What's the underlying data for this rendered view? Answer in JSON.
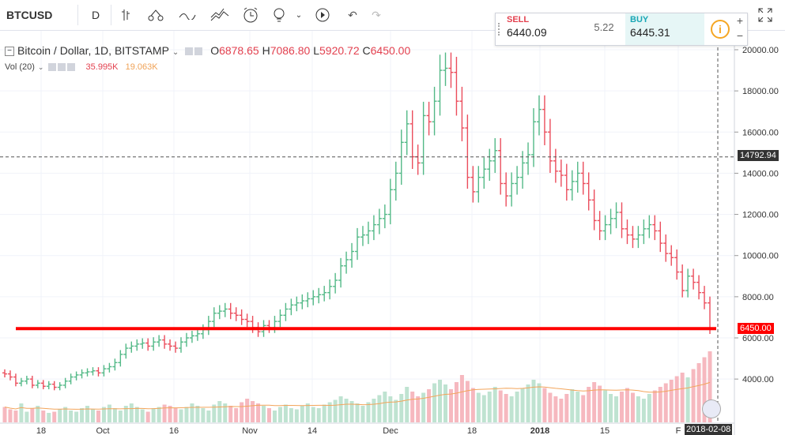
{
  "toolbar": {
    "symbol": "BTCUSD",
    "interval": "D",
    "icons": [
      "bar-style-icon",
      "indicators-icon",
      "line-tool-icon",
      "pattern-icon",
      "alert-icon",
      "idea-icon",
      "replay-icon",
      "undo-icon",
      "redo-icon",
      "fullscreen-icon"
    ]
  },
  "legend": {
    "title": "Bitcoin / Dollar, 1D, BITSTAMP",
    "o_label": "O",
    "o": "6878.65",
    "h_label": "H",
    "h": "7086.80",
    "l_label": "L",
    "l": "5920.72",
    "c_label": "C",
    "c": "6450.00",
    "vol_label": "Vol (20)",
    "vol1": "35.995K",
    "vol2": "19.063K"
  },
  "trade": {
    "sell_label": "SELL",
    "sell_price": "6440.09",
    "spread": "5.22",
    "buy_label": "BUY",
    "buy_price": "6445.31",
    "info": "i",
    "plus": "+",
    "minus": "−"
  },
  "colors": {
    "up": "#53b987",
    "down": "#eb4d5c",
    "hline": "#ff0000",
    "vol_up": "#bfe3d1",
    "vol_down": "#f6b8bf",
    "ma": "#f3a55b"
  },
  "chart_data": {
    "type": "ohlc",
    "y_ticks": [
      "20000.00",
      "18000.00",
      "16000.00",
      "14000.00",
      "12000.00",
      "10000.00",
      "8000.00",
      "6000.00",
      "4000.00"
    ],
    "x_ticks": [
      "18",
      "Oct",
      "16",
      "Nov",
      "14",
      "Dec",
      "18",
      "2018",
      "15",
      "F"
    ],
    "crosshair_price": "14792.94",
    "current_price": "6450.00",
    "date_label": "2018-02-08",
    "ylim": [
      2500,
      20500
    ],
    "hline": 6450,
    "closes": [
      4250,
      4100,
      3800,
      3900,
      4000,
      3700,
      3800,
      3650,
      3750,
      3600,
      3700,
      3900,
      4100,
      4200,
      4300,
      4350,
      4400,
      4300,
      4500,
      4600,
      4800,
      5200,
      5500,
      5600,
      5700,
      5750,
      5600,
      5800,
      5900,
      5700,
      5600,
      5500,
      5800,
      6000,
      6100,
      6200,
      6400,
      6800,
      7200,
      7300,
      7400,
      7200,
      7100,
      6900,
      6800,
      6500,
      6300,
      6600,
      6500,
      6800,
      7100,
      7400,
      7600,
      7700,
      7800,
      7900,
      8000,
      8100,
      8200,
      8500,
      8800,
      9500,
      9800,
      10200,
      10900,
      11000,
      11200,
      11500,
      11800,
      12000,
      13200,
      14000,
      15500,
      16400,
      14800,
      14500,
      16800,
      16500,
      17500,
      19000,
      19100,
      18900,
      17500,
      16200,
      13800,
      13100,
      13800,
      14200,
      14600,
      15100,
      13500,
      12900,
      13500,
      13800,
      14500,
      14900,
      16500,
      17100,
      16000,
      14600,
      14100,
      13900,
      13200,
      13600,
      14000,
      13500,
      12700,
      11700,
      11200,
      11500,
      11800,
      12100,
      11300,
      11000,
      10800,
      11000,
      11300,
      11500,
      11200,
      10600,
      10100,
      9900,
      9200,
      8300,
      9000,
      8700,
      8200,
      7700,
      6450
    ],
    "volumes": [
      1.3,
      1.1,
      1.0,
      1.6,
      0.9,
      1.2,
      1.4,
      1.0,
      0.8,
      0.9,
      1.1,
      1.3,
      1.0,
      0.9,
      1.2,
      1.4,
      1.1,
      1.0,
      1.3,
      1.5,
      1.2,
      1.0,
      1.4,
      1.6,
      1.3,
      1.1,
      0.9,
      1.2,
      1.3,
      1.5,
      1.4,
      1.2,
      1.1,
      1.3,
      1.6,
      1.4,
      1.2,
      1.0,
      1.5,
      1.8,
      1.6,
      1.4,
      1.2,
      1.7,
      2.0,
      1.8,
      1.6,
      1.4,
      1.2,
      1.0,
      1.3,
      1.5,
      1.2,
      1.1,
      1.4,
      1.6,
      1.3,
      1.2,
      1.5,
      1.7,
      1.9,
      2.2,
      2.0,
      1.8,
      1.6,
      1.4,
      1.7,
      2.0,
      2.3,
      2.6,
      2.2,
      1.9,
      2.4,
      3.0,
      2.6,
      2.2,
      2.5,
      2.8,
      3.3,
      3.6,
      3.2,
      2.8,
      3.4,
      4.0,
      3.5,
      2.9,
      2.5,
      2.3,
      2.6,
      3.0,
      2.7,
      2.4,
      2.2,
      2.6,
      2.9,
      3.2,
      3.6,
      3.3,
      2.9,
      2.5,
      2.2,
      2.0,
      2.4,
      2.8,
      2.6,
      2.3,
      3.0,
      3.4,
      3.1,
      2.7,
      2.4,
      2.2,
      2.6,
      2.9,
      2.5,
      2.2,
      2.0,
      2.4,
      2.7,
      3.0,
      3.3,
      3.6,
      3.9,
      4.2,
      3.8,
      4.5,
      5.0,
      5.5,
      6.0
    ]
  }
}
